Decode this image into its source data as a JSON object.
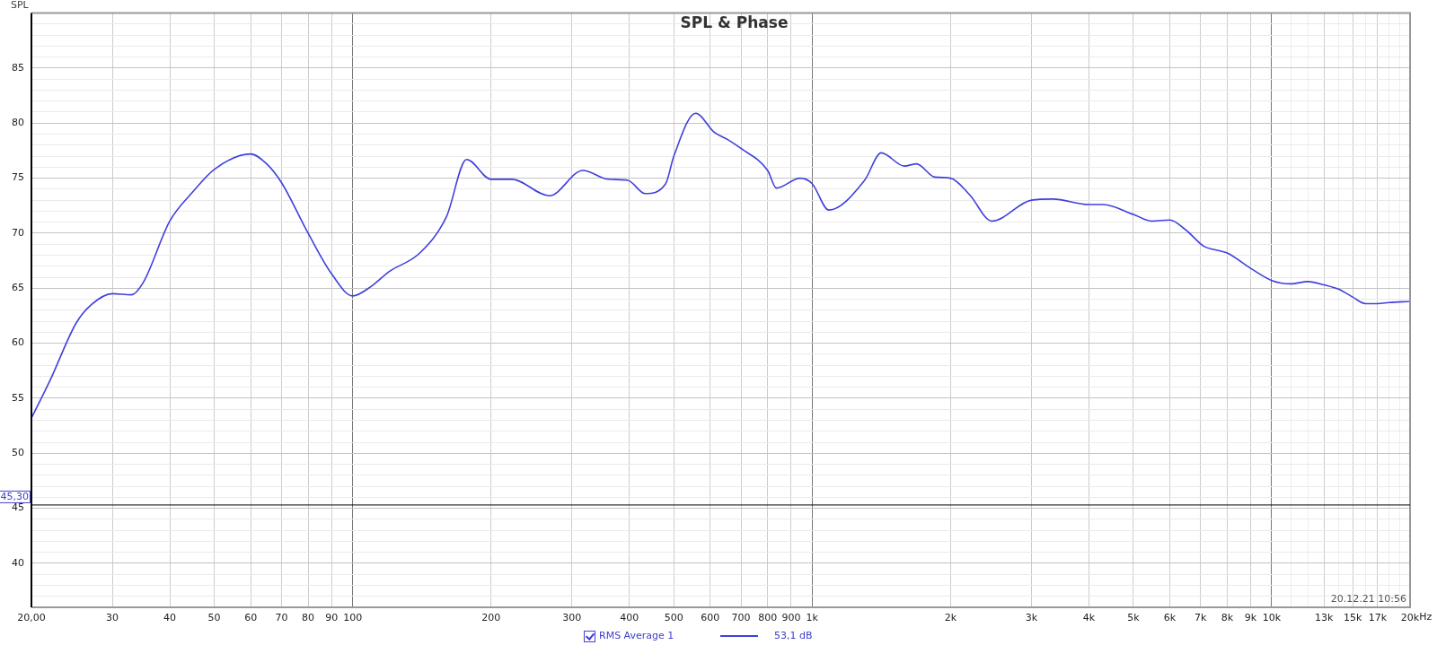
{
  "chart_data": {
    "type": "line",
    "title": "SPL & Phase",
    "ylabel": "SPL",
    "x": [
      20,
      22,
      25,
      27,
      30,
      33,
      35,
      40,
      45,
      50,
      60,
      65,
      70,
      80,
      90,
      100,
      110,
      120,
      140,
      160,
      177,
      200,
      222,
      268,
      317,
      360,
      397,
      433,
      480,
      500,
      558,
      611,
      655,
      700,
      800,
      836,
      941,
      1000,
      1087,
      1300,
      1413,
      1587,
      1686,
      1847,
      2000,
      2200,
      2460,
      3000,
      3340,
      4000,
      4300,
      5000,
      5490,
      6000,
      6500,
      7120,
      7500,
      8000,
      9000,
      10000,
      11000,
      12000,
      13000,
      14000,
      15000,
      16000,
      17000,
      18000,
      20000
    ],
    "series": [
      {
        "name": "RMS Average 1",
        "color": "#4040dd",
        "values": [
          53.2,
          56.7,
          61.8,
          63.5,
          64.5,
          64.4,
          65.5,
          71.1,
          73.8,
          75.8,
          77.2,
          76.3,
          74.6,
          70.0,
          66.3,
          64.3,
          65.2,
          66.5,
          68.2,
          71.5,
          76.7,
          74.9,
          74.9,
          73.4,
          75.7,
          74.9,
          74.8,
          73.6,
          74.5,
          77.0,
          80.9,
          79.2,
          78.5,
          77.7,
          75.7,
          74.1,
          75.0,
          74.5,
          72.1,
          74.8,
          77.3,
          76.1,
          76.3,
          75.1,
          75.0,
          73.5,
          71.1,
          73.0,
          73.1,
          72.6,
          72.6,
          71.7,
          71.1,
          71.2,
          70.3,
          68.8,
          68.5,
          68.2,
          66.8,
          65.7,
          65.4,
          65.6,
          65.3,
          64.9,
          64.2,
          63.6,
          63.6,
          63.7,
          63.8
        ]
      }
    ],
    "xlim": [
      20,
      20000
    ],
    "ylim": [
      36,
      90
    ],
    "log": "x",
    "xticks": [
      {
        "value": 20,
        "label": "20,00"
      },
      30,
      40,
      50,
      60,
      70,
      80,
      90,
      100,
      200,
      300,
      400,
      500,
      600,
      700,
      800,
      900,
      {
        "value": 1000,
        "label": "1k"
      },
      {
        "value": 2000,
        "label": "2k"
      },
      {
        "value": 3000,
        "label": "3k"
      },
      {
        "value": 4000,
        "label": "4k"
      },
      {
        "value": 5000,
        "label": "5k"
      },
      {
        "value": 6000,
        "label": "6k"
      },
      {
        "value": 7000,
        "label": "7k"
      },
      {
        "value": 8000,
        "label": "8k"
      },
      {
        "value": 9000,
        "label": "9k"
      },
      {
        "value": 10000,
        "label": "10k"
      },
      {
        "value": 11000,
        "label": null
      },
      {
        "value": 12000,
        "label": null
      },
      {
        "value": 13000,
        "label": "13k"
      },
      {
        "value": 14000,
        "label": null
      },
      {
        "value": 15000,
        "label": "15k"
      },
      {
        "value": 16000,
        "label": null
      },
      {
        "value": 17000,
        "label": "17k"
      },
      {
        "value": 18000,
        "label": null
      },
      {
        "value": 19000,
        "label": null
      },
      {
        "value": 20000,
        "label": "20k"
      }
    ],
    "xlabel": "Hz",
    "yticks": [
      {
        "value": 37,
        "label": null
      },
      {
        "value": 38,
        "label": null
      },
      {
        "value": 39,
        "label": null
      },
      40,
      {
        "value": 41,
        "label": null
      },
      {
        "value": 42,
        "label": null
      },
      {
        "value": 43,
        "label": null
      },
      {
        "value": 44,
        "label": null
      },
      45,
      {
        "value": 46,
        "label": null
      },
      {
        "value": 47,
        "label": null
      },
      {
        "value": 48,
        "label": null
      },
      {
        "value": 49,
        "label": null
      },
      50,
      {
        "value": 51,
        "label": null
      },
      {
        "value": 52,
        "label": null
      },
      {
        "value": 53,
        "label": null
      },
      {
        "value": 54,
        "label": null
      },
      55,
      {
        "value": 56,
        "label": null
      },
      {
        "value": 57,
        "label": null
      },
      {
        "value": 58,
        "label": null
      },
      {
        "value": 59,
        "label": null
      },
      60,
      {
        "value": 61,
        "label": null
      },
      {
        "value": 62,
        "label": null
      },
      {
        "value": 63,
        "label": null
      },
      {
        "value": 64,
        "label": null
      },
      65,
      {
        "value": 66,
        "label": null
      },
      {
        "value": 67,
        "label": null
      },
      {
        "value": 68,
        "label": null
      },
      {
        "value": 69,
        "label": null
      },
      70,
      {
        "value": 71,
        "label": null
      },
      {
        "value": 72,
        "label": null
      },
      {
        "value": 73,
        "label": null
      },
      {
        "value": 74,
        "label": null
      },
      75,
      {
        "value": 76,
        "label": null
      },
      {
        "value": 77,
        "label": null
      },
      {
        "value": 78,
        "label": null
      },
      {
        "value": 79,
        "label": null
      },
      80,
      {
        "value": 81,
        "label": null
      },
      {
        "value": 82,
        "label": null
      },
      {
        "value": 83,
        "label": null
      },
      {
        "value": 84,
        "label": null
      },
      85,
      {
        "value": 86,
        "label": null
      },
      {
        "value": 87,
        "label": null
      },
      {
        "value": 88,
        "label": null
      },
      {
        "value": 89,
        "label": null
      }
    ],
    "ref_lines": [
      {
        "axis": "y",
        "value": 45.3,
        "label": "45,30",
        "color": "#000000"
      }
    ],
    "annotations": [
      "20.12.21 10:56",
      "53,1 dB"
    ],
    "grid": true,
    "legend": "bottom",
    "marker": "none",
    "line_style": "solid"
  }
}
